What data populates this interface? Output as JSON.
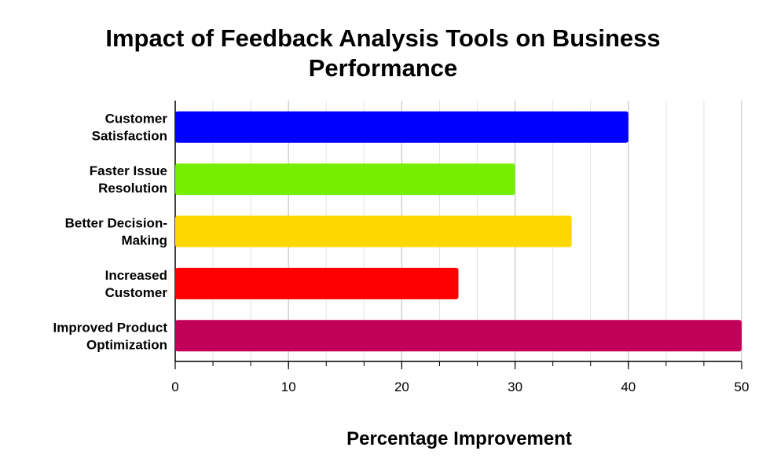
{
  "chart_data": {
    "type": "bar",
    "orientation": "horizontal",
    "title_lines": [
      "Impact of Feedback Analysis Tools on Business",
      "Performance"
    ],
    "xlabel": "Percentage Improvement",
    "ylabel": "",
    "xlim": [
      0,
      50
    ],
    "xticks": [
      0,
      10,
      20,
      30,
      40,
      50
    ],
    "minor_tick_step": 3.3333,
    "grid": true,
    "legend": "none",
    "categories": [
      {
        "label_lines": [
          "Customer",
          "Satisfaction"
        ],
        "value": 40,
        "color": "#0000ff"
      },
      {
        "label_lines": [
          "Faster Issue",
          "Resolution"
        ],
        "value": 30,
        "color": "#76ee00"
      },
      {
        "label_lines": [
          "Better Decision-",
          "Making"
        ],
        "value": 35,
        "color": "#ffd700"
      },
      {
        "label_lines": [
          "Increased",
          "Customer"
        ],
        "value": 25,
        "color": "#ff0000"
      },
      {
        "label_lines": [
          "Improved Product",
          "Optimization"
        ],
        "value": 50,
        "color": "#c2005a"
      }
    ]
  }
}
